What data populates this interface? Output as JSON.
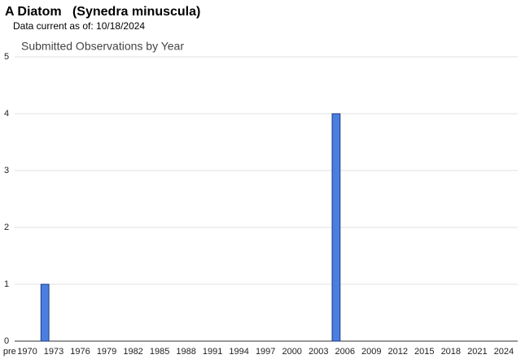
{
  "header": {
    "title": "A Diatom   (Synedra minuscula)",
    "subtitle": "Data current as of: 10/18/2024"
  },
  "chart_data": {
    "type": "bar",
    "title": "Submitted Observations by Year",
    "categories": [
      "pre",
      null,
      "1970",
      null,
      null,
      "1973",
      null,
      null,
      "1976",
      null,
      null,
      "1979",
      null,
      null,
      "1982",
      null,
      null,
      "1985",
      null,
      null,
      "1988",
      null,
      null,
      "1991",
      null,
      null,
      "1994",
      null,
      null,
      "1997",
      null,
      null,
      "2000",
      null,
      null,
      "2003",
      null,
      null,
      "2006",
      null,
      null,
      "2009",
      null,
      null,
      "2012",
      null,
      null,
      "2015",
      null,
      null,
      "2018",
      null,
      null,
      "2021",
      null,
      null,
      "2024"
    ],
    "values": [
      0,
      0,
      0,
      0,
      1,
      0,
      0,
      0,
      0,
      0,
      0,
      0,
      0,
      0,
      0,
      0,
      0,
      0,
      0,
      0,
      0,
      0,
      0,
      0,
      0,
      0,
      0,
      0,
      0,
      0,
      0,
      0,
      0,
      0,
      0,
      0,
      0,
      4,
      0,
      0,
      0,
      0,
      0,
      0,
      0,
      0,
      0,
      0,
      0,
      0,
      0,
      0,
      0,
      0,
      0,
      0,
      0
    ],
    "color": "#4a7fe0",
    "ylim": [
      0,
      5
    ],
    "yticks": [
      0,
      1,
      2,
      3,
      4,
      5
    ],
    "grid": true
  }
}
